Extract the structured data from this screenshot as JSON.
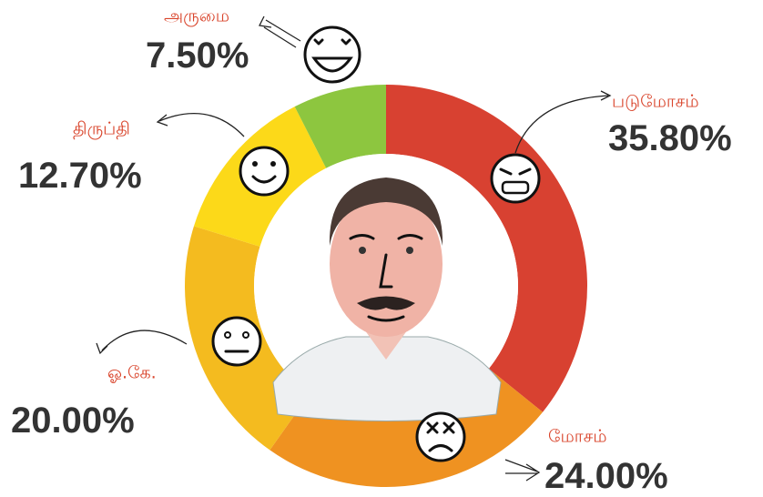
{
  "chart_data": {
    "type": "donut",
    "categories": [
      "படுமோசம்",
      "மோசம்",
      "ஓ.கே.",
      "திருப்தி",
      "அருமை"
    ],
    "values": [
      35.8,
      24,
      20,
      12.7,
      7.5
    ],
    "value_labels": [
      "35.80%",
      "24.00%",
      "20.00%",
      "12.70%",
      "7.50%"
    ],
    "colors": [
      "#d84131",
      "#ef9221",
      "#f4bb1f",
      "#fcd919",
      "#8dc63f"
    ]
  }
}
